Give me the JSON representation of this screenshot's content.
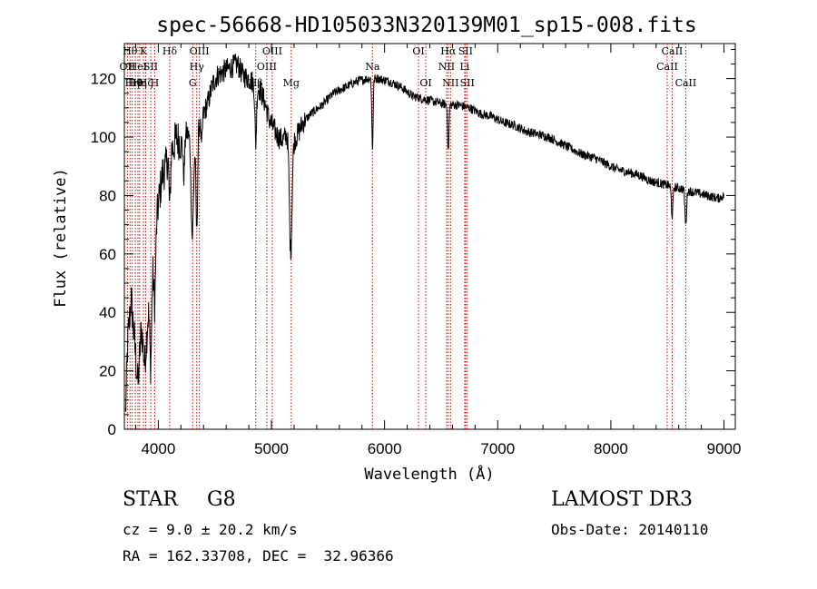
{
  "chart_data": {
    "type": "line",
    "title": "spec-56668-HD105033N320139M01_sp15-008.fits",
    "xlabel": "Wavelength (Å)",
    "ylabel": "Flux (relative)",
    "xlim": [
      3700,
      9100
    ],
    "ylim": [
      0,
      132
    ],
    "xticks": [
      4000,
      5000,
      6000,
      7000,
      8000,
      9000
    ],
    "yticks": [
      0,
      20,
      40,
      60,
      80,
      100,
      120
    ],
    "grid": false,
    "line_color": "#000000",
    "marker_color": "#cc0000",
    "spectrum_anchors": [
      [
        3710,
        5
      ],
      [
        3730,
        30
      ],
      [
        3760,
        45
      ],
      [
        3790,
        30
      ],
      [
        3820,
        15
      ],
      [
        3850,
        35
      ],
      [
        3880,
        22
      ],
      [
        3920,
        45
      ],
      [
        3950,
        58
      ],
      [
        3980,
        70
      ],
      [
        4010,
        80
      ],
      [
        4040,
        88
      ],
      [
        4070,
        90
      ],
      [
        4100,
        98
      ],
      [
        4130,
        96
      ],
      [
        4160,
        100
      ],
      [
        4200,
        98
      ],
      [
        4240,
        102
      ],
      [
        4280,
        100
      ],
      [
        4320,
        96
      ],
      [
        4360,
        104
      ],
      [
        4400,
        108
      ],
      [
        4440,
        112
      ],
      [
        4480,
        118
      ],
      [
        4520,
        121
      ],
      [
        4560,
        122
      ],
      [
        4600,
        123
      ],
      [
        4650,
        124
      ],
      [
        4700,
        125
      ],
      [
        4750,
        121
      ],
      [
        4800,
        120
      ],
      [
        4860,
        118
      ],
      [
        4900,
        116
      ],
      [
        4940,
        112
      ],
      [
        4980,
        106
      ],
      [
        5020,
        103
      ],
      [
        5060,
        100
      ],
      [
        5100,
        99
      ],
      [
        5140,
        101
      ],
      [
        5180,
        98
      ],
      [
        5220,
        100
      ],
      [
        5280,
        105
      ],
      [
        5350,
        108
      ],
      [
        5450,
        111
      ],
      [
        5550,
        115
      ],
      [
        5650,
        117
      ],
      [
        5750,
        119
      ],
      [
        5850,
        120
      ],
      [
        5950,
        120
      ],
      [
        6050,
        119
      ],
      [
        6150,
        117
      ],
      [
        6250,
        114
      ],
      [
        6350,
        113
      ],
      [
        6450,
        112
      ],
      [
        6550,
        111
      ],
      [
        6650,
        111
      ],
      [
        6750,
        110
      ],
      [
        6850,
        108
      ],
      [
        6950,
        107
      ],
      [
        7050,
        105
      ],
      [
        7150,
        104
      ],
      [
        7250,
        102
      ],
      [
        7350,
        101
      ],
      [
        7450,
        100
      ],
      [
        7550,
        98
      ],
      [
        7650,
        96
      ],
      [
        7750,
        94
      ],
      [
        7850,
        93
      ],
      [
        7950,
        91
      ],
      [
        8050,
        89
      ],
      [
        8150,
        88
      ],
      [
        8250,
        87
      ],
      [
        8350,
        85
      ],
      [
        8450,
        84
      ],
      [
        8550,
        83
      ],
      [
        8650,
        82
      ],
      [
        8750,
        81
      ],
      [
        8850,
        80
      ],
      [
        8950,
        79
      ],
      [
        9000,
        80
      ]
    ],
    "absorption_features": [
      [
        3933,
        28,
        12
      ],
      [
        3968,
        22,
        12
      ],
      [
        4101,
        22,
        10
      ],
      [
        4226,
        14,
        10
      ],
      [
        4300,
        32,
        14
      ],
      [
        4340,
        32,
        10
      ],
      [
        4383,
        10,
        8
      ],
      [
        4861,
        20,
        10
      ],
      [
        5170,
        38,
        16
      ],
      [
        5893,
        24,
        8
      ],
      [
        6563,
        16,
        8
      ],
      [
        8542,
        10,
        10
      ],
      [
        8662,
        12,
        10
      ]
    ],
    "line_markers": [
      {
        "wave": 3727,
        "label": "OII",
        "row": 1
      },
      {
        "wave": 3750,
        "label": "Hθ",
        "row": 0
      },
      {
        "wave": 3770,
        "label": "Hη",
        "row": 2
      },
      {
        "wave": 3797,
        "label": "Hθ",
        "row": 2
      },
      {
        "wave": 3820,
        "label": "HeI",
        "row": 1
      },
      {
        "wave": 3835,
        "label": "Hη",
        "row": 2
      },
      {
        "wave": 3869,
        "label": "K",
        "row": 0
      },
      {
        "wave": 3889,
        "label": "Hζ",
        "row": 2
      },
      {
        "wave": 3933,
        "label": "SII",
        "row": 1
      },
      {
        "wave": 3968,
        "label": "H",
        "row": 2
      },
      {
        "wave": 4101,
        "label": "Hδ",
        "row": 0
      },
      {
        "wave": 4304,
        "label": "G",
        "row": 2
      },
      {
        "wave": 4340,
        "label": "Hγ",
        "row": 1
      },
      {
        "wave": 4363,
        "label": "OIII",
        "row": 0
      },
      {
        "wave": 4861,
        "label": "Hβ",
        "row": 2
      },
      {
        "wave": 4959,
        "label": "OIII",
        "row": 1
      },
      {
        "wave": 5007,
        "label": "OIII",
        "row": 0
      },
      {
        "wave": 5175,
        "label": "Mg",
        "row": 2
      },
      {
        "wave": 5893,
        "label": "Na",
        "row": 1
      },
      {
        "wave": 6300,
        "label": "OI",
        "row": 0
      },
      {
        "wave": 6364,
        "label": "OI",
        "row": 2
      },
      {
        "wave": 6548,
        "label": "NII",
        "row": 1
      },
      {
        "wave": 6563,
        "label": "Hα",
        "row": 0
      },
      {
        "wave": 6583,
        "label": "NII",
        "row": 2
      },
      {
        "wave": 6708,
        "label": "Li",
        "row": 1
      },
      {
        "wave": 6716,
        "label": "SII",
        "row": 0
      },
      {
        "wave": 6731,
        "label": "SII",
        "row": 2
      },
      {
        "wave": 8498,
        "label": "CaII",
        "row": 1
      },
      {
        "wave": 8542,
        "label": "CaII",
        "row": 0
      },
      {
        "wave": 8662,
        "label": "CaII",
        "row": 2
      }
    ]
  },
  "footer": {
    "class": "STAR",
    "subclass": "G8",
    "cz": "cz = 9.0 ± 20.2 km/s",
    "coords": "RA = 162.33708, DEC =  32.96366",
    "survey": "LAMOST DR3",
    "obs_date": "Obs-Date: 20140110"
  }
}
